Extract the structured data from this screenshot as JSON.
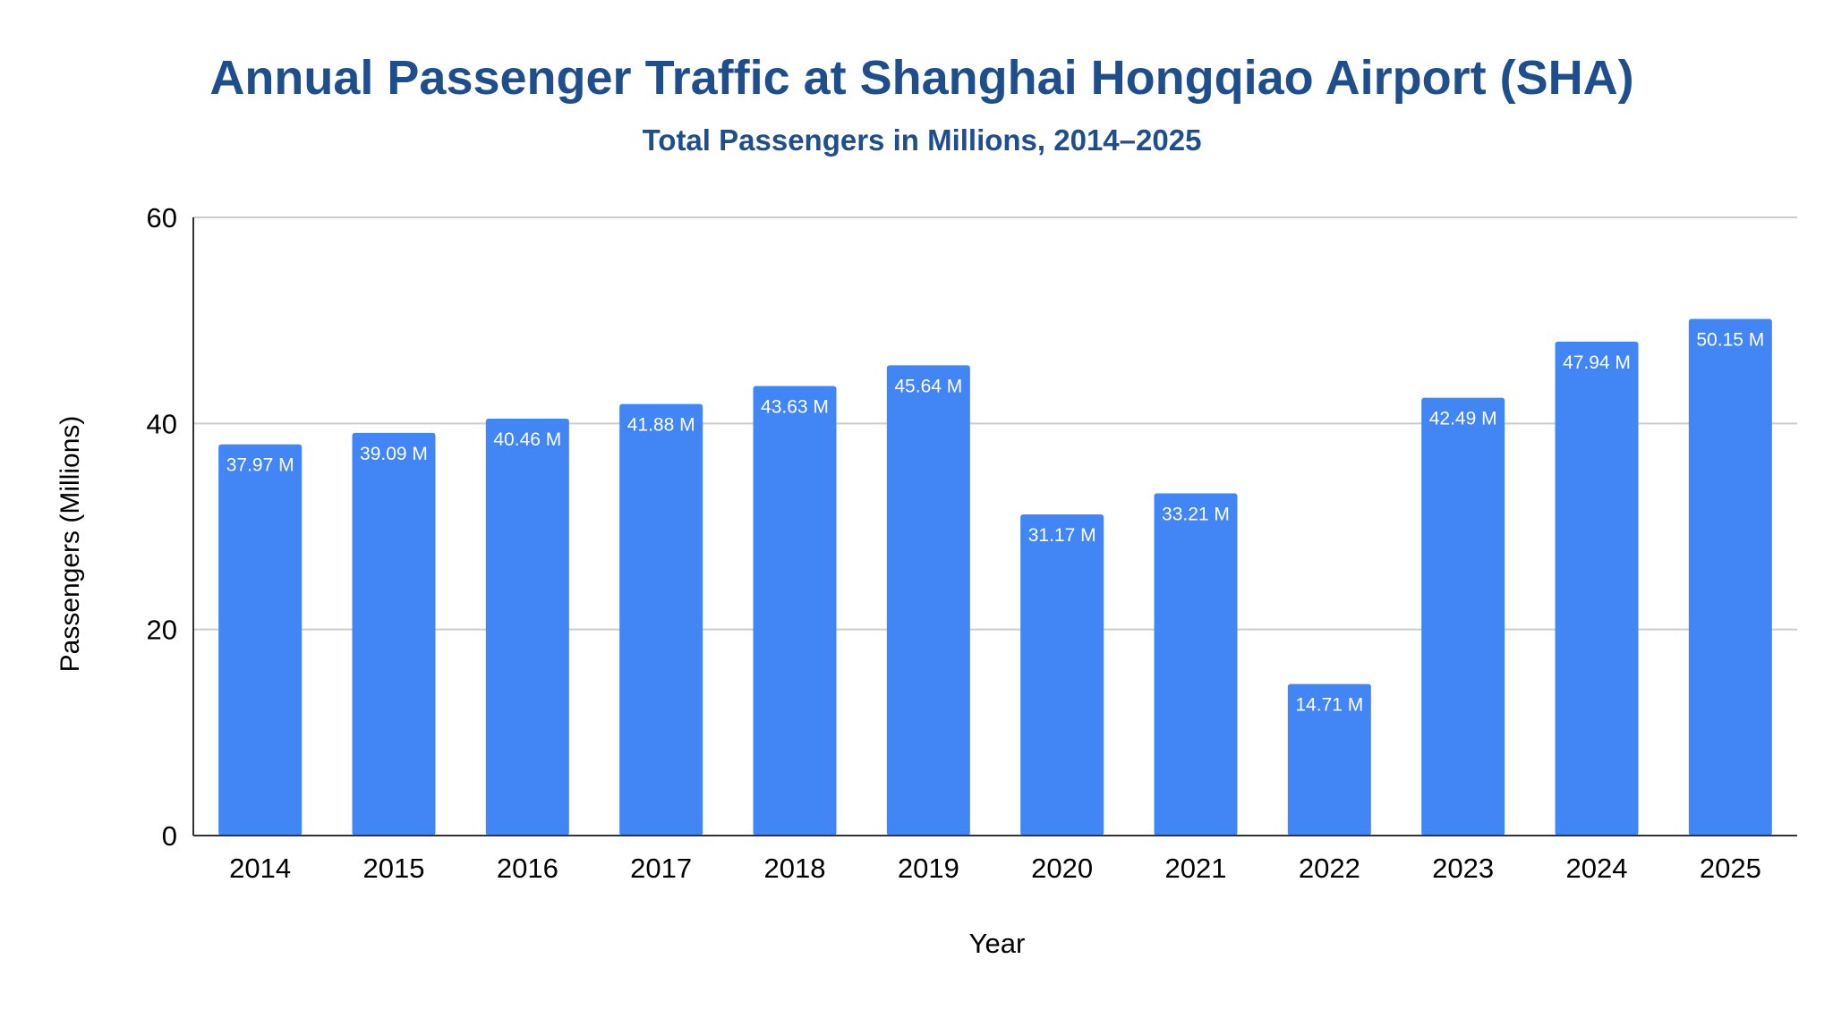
{
  "chart_data": {
    "type": "bar",
    "title": "Annual Passenger Traffic at Shanghai Hongqiao Airport (SHA)",
    "subtitle": "Total Passengers in Millions, 2014–2025",
    "xlabel": "Year",
    "ylabel": "Passengers (Millions)",
    "ylim": [
      0,
      60
    ],
    "yticks": [
      0,
      20,
      40,
      60
    ],
    "grid": true,
    "legend": "none",
    "categories": [
      "2014",
      "2015",
      "2016",
      "2017",
      "2018",
      "2019",
      "2020",
      "2021",
      "2022",
      "2023",
      "2024",
      "2025"
    ],
    "values": [
      37.97,
      39.09,
      40.46,
      41.88,
      43.63,
      45.64,
      31.17,
      33.21,
      14.71,
      42.49,
      47.94,
      50.15
    ],
    "value_labels": [
      "37.97 M",
      "39.09 M",
      "40.46 M",
      "41.88 M",
      "43.63 M",
      "45.64 M",
      "31.17 M",
      "33.21 M",
      "14.71 M",
      "42.49 M",
      "47.94 M",
      "50.15 M"
    ],
    "colors": {
      "bar": "#4285f4",
      "title": "#1f4e8c",
      "subtitle": "#1f4e8c",
      "axis_text": "#000000",
      "gridline": "#cccccc",
      "axis_line": "#333333",
      "bar_label": "#ffffff"
    }
  }
}
